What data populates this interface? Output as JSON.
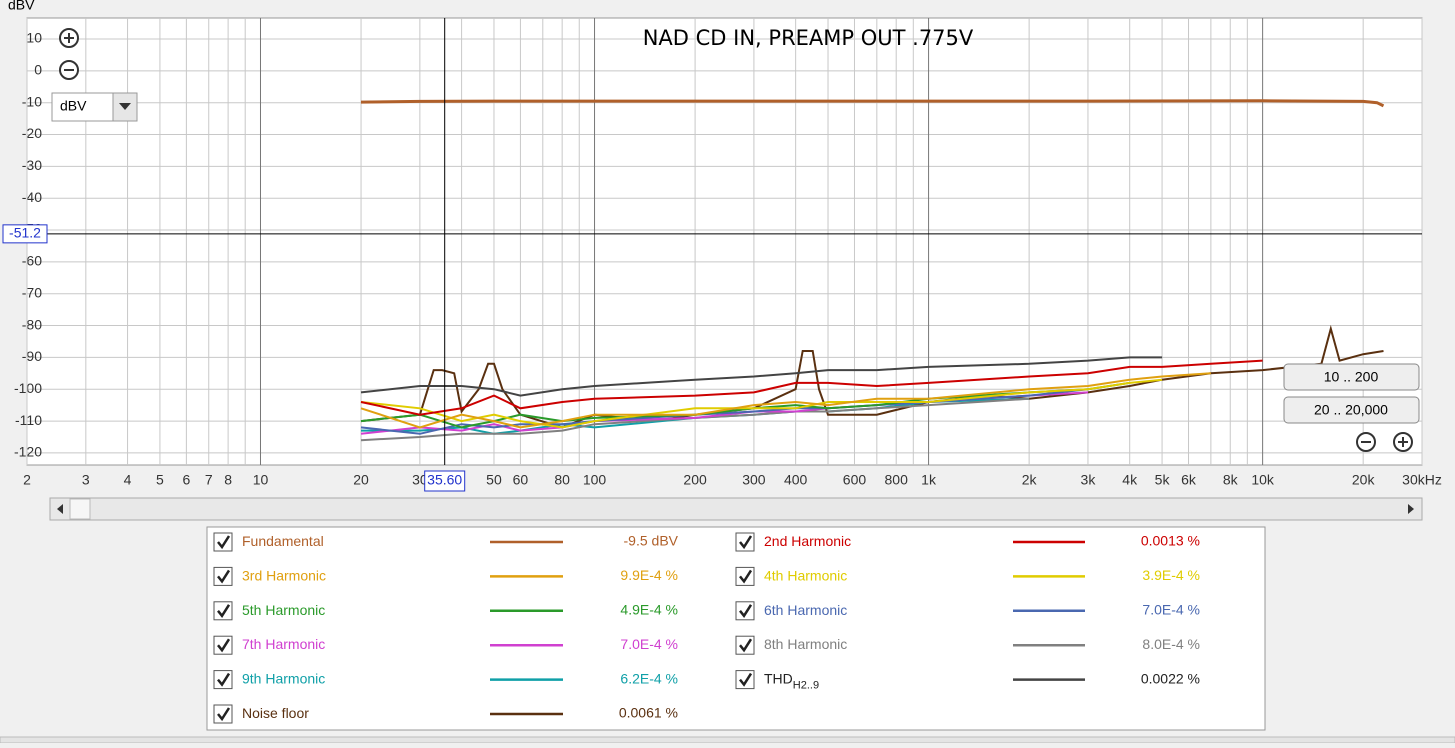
{
  "chart_data": {
    "type": "line",
    "title": "NAD CD IN, PREAMP OUT .775V",
    "y_label": "dBV",
    "unit_selector": "dBV",
    "xscale": "log",
    "grid": true,
    "xlim": [
      2,
      30000
    ],
    "ylim": [
      -123.8,
      16.6
    ],
    "yticks": [
      10,
      0,
      -10,
      -20,
      -30,
      -40,
      -50,
      -60,
      -70,
      -80,
      -90,
      -100,
      -110,
      -120
    ],
    "xticks": [
      2,
      3,
      4,
      5,
      6,
      7,
      8,
      10,
      20,
      30,
      50,
      60,
      80,
      100,
      200,
      300,
      400,
      600,
      800,
      {
        "value": 1000,
        "label": "1k"
      },
      {
        "value": 2000,
        "label": "2k"
      },
      {
        "value": 3000,
        "label": "3k"
      },
      {
        "value": 4000,
        "label": "4k"
      },
      {
        "value": 5000,
        "label": "5k"
      },
      {
        "value": 6000,
        "label": "6k"
      },
      {
        "value": 8000,
        "label": "8k"
      },
      {
        "value": 10000,
        "label": "10k"
      },
      {
        "value": 20000,
        "label": "20k"
      },
      {
        "value": 30000,
        "label": "30kHz"
      }
    ],
    "x_minor_ticks": [
      9,
      40,
      70,
      90,
      500,
      700,
      900,
      7000,
      9000
    ],
    "cursor": {
      "x": {
        "value": 35.6,
        "label": "35.60"
      },
      "y": -51.2
    },
    "range_buttons": [
      "10 .. 200",
      "20 .. 20,000"
    ],
    "series": [
      {
        "name": "Fundamental",
        "color": "#b0602a",
        "reading": "-9.5 dBV",
        "x": [
          20,
          30,
          50,
          100,
          300,
          1000,
          3000,
          10000,
          20000,
          22000,
          23000
        ],
        "values": [
          -9.8,
          -9.6,
          -9.5,
          -9.5,
          -9.5,
          -9.5,
          -9.5,
          -9.4,
          -9.6,
          -10,
          -11
        ]
      },
      {
        "name": "2nd Harmonic",
        "color": "#cc0000",
        "reading": "0.0013 %",
        "x": [
          20,
          30,
          40,
          50,
          60,
          80,
          100,
          200,
          300,
          400,
          500,
          700,
          1000,
          2000,
          3000,
          4000,
          5000,
          7000,
          10000
        ],
        "values": [
          -104,
          -108,
          -106,
          -102,
          -106,
          -104,
          -103,
          -102,
          -101,
          -98,
          -98,
          -99,
          -98,
          -96,
          -95,
          -93,
          -93,
          -92,
          -91
        ]
      },
      {
        "name": "3rd Harmonic",
        "color": "#e0a010",
        "reading": "9.9E-4 %",
        "x": [
          20,
          30,
          40,
          50,
          60,
          80,
          100,
          200,
          300,
          400,
          500,
          700,
          1000,
          2000,
          3000,
          4000,
          5000,
          7000
        ],
        "values": [
          -106,
          -112,
          -108,
          -110,
          -112,
          -110,
          -108,
          -108,
          -105,
          -104,
          -105,
          -103,
          -103,
          -100,
          -99,
          -97,
          -96,
          -95
        ]
      },
      {
        "name": "4th Harmonic",
        "color": "#e0cc00",
        "reading": "3.9E-4 %",
        "x": [
          20,
          30,
          40,
          50,
          60,
          80,
          100,
          200,
          300,
          400,
          500,
          700,
          1000,
          2000,
          3000,
          4000,
          5000
        ],
        "values": [
          -104,
          -106,
          -110,
          -108,
          -110,
          -112,
          -110,
          -106,
          -106,
          -106,
          -104,
          -104,
          -104,
          -101,
          -100,
          -98,
          -97
        ]
      },
      {
        "name": "5th Harmonic",
        "color": "#2a9a2a",
        "reading": "4.9E-4 %",
        "x": [
          20,
          30,
          40,
          50,
          60,
          80,
          100,
          200,
          300,
          400,
          500,
          700,
          1000,
          2000,
          3000,
          4000
        ],
        "values": [
          -110,
          -108,
          -112,
          -110,
          -108,
          -110,
          -109,
          -108,
          -106,
          -105,
          -106,
          -105,
          -103,
          -101,
          -100,
          -98
        ]
      },
      {
        "name": "6th Harmonic",
        "color": "#4a68b0",
        "reading": "7.0E-4 %",
        "x": [
          20,
          30,
          40,
          50,
          60,
          80,
          100,
          200,
          300,
          400,
          500,
          700,
          1000,
          2000,
          3000
        ],
        "values": [
          -112,
          -114,
          -111,
          -112,
          -111,
          -111,
          -110,
          -108,
          -107,
          -106,
          -106,
          -105,
          -104,
          -102,
          -100
        ]
      },
      {
        "name": "7th Harmonic",
        "color": "#d040d0",
        "reading": "7.0E-4 %",
        "x": [
          20,
          30,
          40,
          50,
          60,
          80,
          100,
          200,
          300,
          400,
          500,
          700,
          1000,
          2000,
          3000
        ],
        "values": [
          -114,
          -112,
          -113,
          -111,
          -113,
          -112,
          -110,
          -109,
          -107,
          -107,
          -106,
          -105,
          -104,
          -102,
          -101
        ]
      },
      {
        "name": "8th Harmonic",
        "color": "#808080",
        "reading": "8.0E-4 %",
        "x": [
          20,
          30,
          40,
          50,
          60,
          80,
          100,
          200,
          300,
          400,
          500,
          700,
          1000,
          2000
        ],
        "values": [
          -116,
          -115,
          -114,
          -114,
          -114,
          -113,
          -111,
          -109,
          -108,
          -107,
          -107,
          -106,
          -105,
          -103
        ]
      },
      {
        "name": "9th Harmonic",
        "color": "#10a0a8",
        "reading": "6.2E-4 %",
        "x": [
          20,
          30,
          40,
          50,
          60,
          80,
          100,
          200,
          300,
          400,
          500,
          700,
          1000,
          2000
        ],
        "values": [
          -113,
          -113,
          -112,
          -114,
          -113,
          -111,
          -112,
          -109,
          -108,
          -107,
          -107,
          -106,
          -104,
          -103
        ]
      },
      {
        "name": "THD",
        "name_sub": "H2..9",
        "color": "#444444",
        "reading": "0.0022 %",
        "x": [
          20,
          30,
          40,
          50,
          60,
          80,
          100,
          200,
          300,
          400,
          500,
          700,
          1000,
          2000,
          3000,
          4000,
          5000
        ],
        "values": [
          -101,
          -99,
          -99,
          -100,
          -102,
          -100,
          -99,
          -97,
          -96,
          -95,
          -94,
          -94,
          -93,
          -92,
          -91,
          -90,
          -90
        ]
      },
      {
        "name": "Noise floor",
        "color": "#5a3010",
        "reading": "0.0061 %",
        "x": [
          20,
          30,
          33,
          35,
          38,
          40,
          45,
          48,
          50,
          53,
          60,
          80,
          100,
          150,
          200,
          300,
          400,
          420,
          450,
          470,
          500,
          700,
          1000,
          1500,
          2000,
          3000,
          4000,
          5000,
          7000,
          10000,
          15000,
          16000,
          17000,
          20000,
          23000
        ],
        "values": [
          -110,
          -108,
          -94,
          -94,
          -95,
          -107,
          -100,
          -92,
          -92,
          -100,
          -108,
          -112,
          -108,
          -110,
          -108,
          -106,
          -100,
          -88,
          -88,
          -100,
          -108,
          -108,
          -104,
          -102,
          -103,
          -101,
          -99,
          -97,
          -95,
          -94,
          -92,
          -81,
          -91,
          -89,
          -88
        ]
      }
    ]
  }
}
